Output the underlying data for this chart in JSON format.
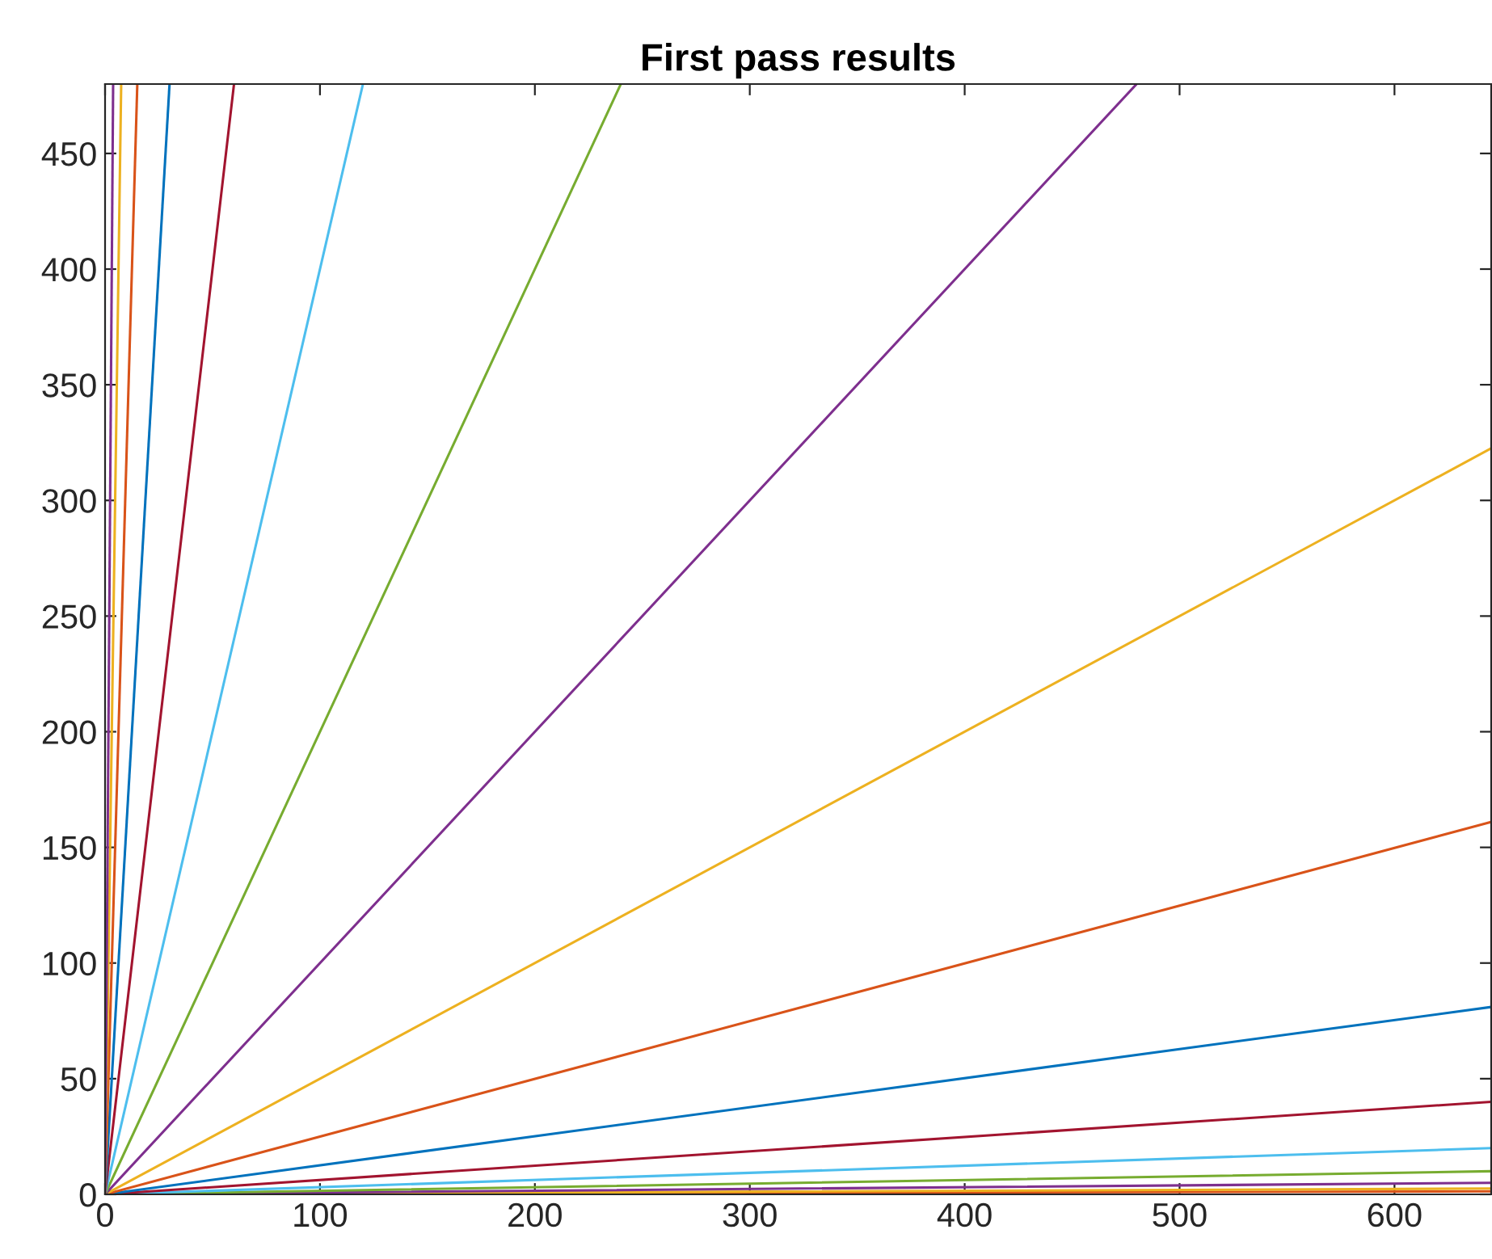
{
  "chart_data": {
    "type": "line",
    "title": "First pass results",
    "xlim": [
      0,
      645
    ],
    "ylim": [
      0,
      480
    ],
    "xticks": [
      0,
      100,
      200,
      300,
      400,
      500,
      600
    ],
    "yticks": [
      0,
      50,
      100,
      150,
      200,
      250,
      300,
      350,
      400,
      450
    ],
    "grid": false,
    "marker": "none",
    "line_style": "solid",
    "series": [
      {
        "color": "#d95319",
        "x": [
          0,
          645
        ],
        "values": [
          0,
          1.3
        ]
      },
      {
        "color": "#edb120",
        "x": [
          0,
          645
        ],
        "values": [
          0,
          2.5
        ]
      },
      {
        "color": "#7e2f8e",
        "x": [
          0,
          645
        ],
        "values": [
          0,
          5
        ]
      },
      {
        "color": "#77ac30",
        "x": [
          0,
          645
        ],
        "values": [
          0,
          10
        ]
      },
      {
        "color": "#4dbeee",
        "x": [
          0,
          645
        ],
        "values": [
          0,
          20
        ]
      },
      {
        "color": "#a2142f",
        "x": [
          0,
          645
        ],
        "values": [
          0,
          40
        ]
      },
      {
        "color": "#0072bd",
        "x": [
          0,
          645
        ],
        "values": [
          0,
          81
        ]
      },
      {
        "color": "#d95319",
        "x": [
          0,
          645
        ],
        "values": [
          0,
          161
        ]
      },
      {
        "color": "#edb120",
        "x": [
          0,
          645
        ],
        "values": [
          0,
          322.5
        ]
      },
      {
        "color": "#7e2f8e",
        "x": [
          0,
          480
        ],
        "values": [
          0,
          480
        ]
      },
      {
        "color": "#77ac30",
        "x": [
          0,
          240
        ],
        "values": [
          0,
          480
        ]
      },
      {
        "color": "#4dbeee",
        "x": [
          0,
          120
        ],
        "values": [
          0,
          480
        ]
      },
      {
        "color": "#a2142f",
        "x": [
          0,
          60
        ],
        "values": [
          0,
          480
        ]
      },
      {
        "color": "#0072bd",
        "x": [
          0,
          30
        ],
        "values": [
          0,
          480
        ]
      },
      {
        "color": "#d95319",
        "x": [
          0,
          15
        ],
        "values": [
          0,
          480
        ]
      },
      {
        "color": "#edb120",
        "x": [
          0,
          7.5
        ],
        "values": [
          0,
          480
        ]
      },
      {
        "color": "#7e2f8e",
        "x": [
          0,
          3.75
        ],
        "values": [
          0,
          480
        ]
      }
    ]
  }
}
